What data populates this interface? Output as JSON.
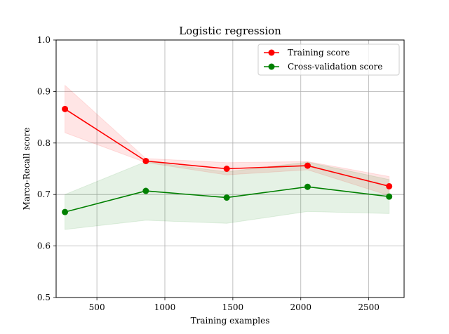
{
  "chart_data": {
    "type": "line",
    "title": "Logistic regression",
    "xlabel": "Training examples",
    "ylabel": "Marco-Recall score",
    "xlim": [
      200,
      2760
    ],
    "ylim": [
      0.5,
      1.0
    ],
    "xticks": [
      500,
      1000,
      1500,
      2000,
      2500
    ],
    "yticks": [
      0.5,
      0.6,
      0.7,
      0.8,
      0.9,
      1.0
    ],
    "grid": true,
    "legend_position": "upper right",
    "x": [
      265,
      860,
      1455,
      2050,
      2650
    ],
    "series": [
      {
        "name": "Training score",
        "color": "#ff0000",
        "values": [
          0.866,
          0.765,
          0.75,
          0.756,
          0.716
        ],
        "band_lower": [
          0.82,
          0.762,
          0.738,
          0.748,
          0.698
        ],
        "band_upper": [
          0.912,
          0.77,
          0.762,
          0.764,
          0.735
        ]
      },
      {
        "name": "Cross-validation score",
        "color": "#008000",
        "values": [
          0.666,
          0.707,
          0.694,
          0.715,
          0.696
        ],
        "band_lower": [
          0.632,
          0.65,
          0.644,
          0.667,
          0.663
        ],
        "band_upper": [
          0.7,
          0.764,
          0.744,
          0.763,
          0.729
        ]
      }
    ]
  }
}
